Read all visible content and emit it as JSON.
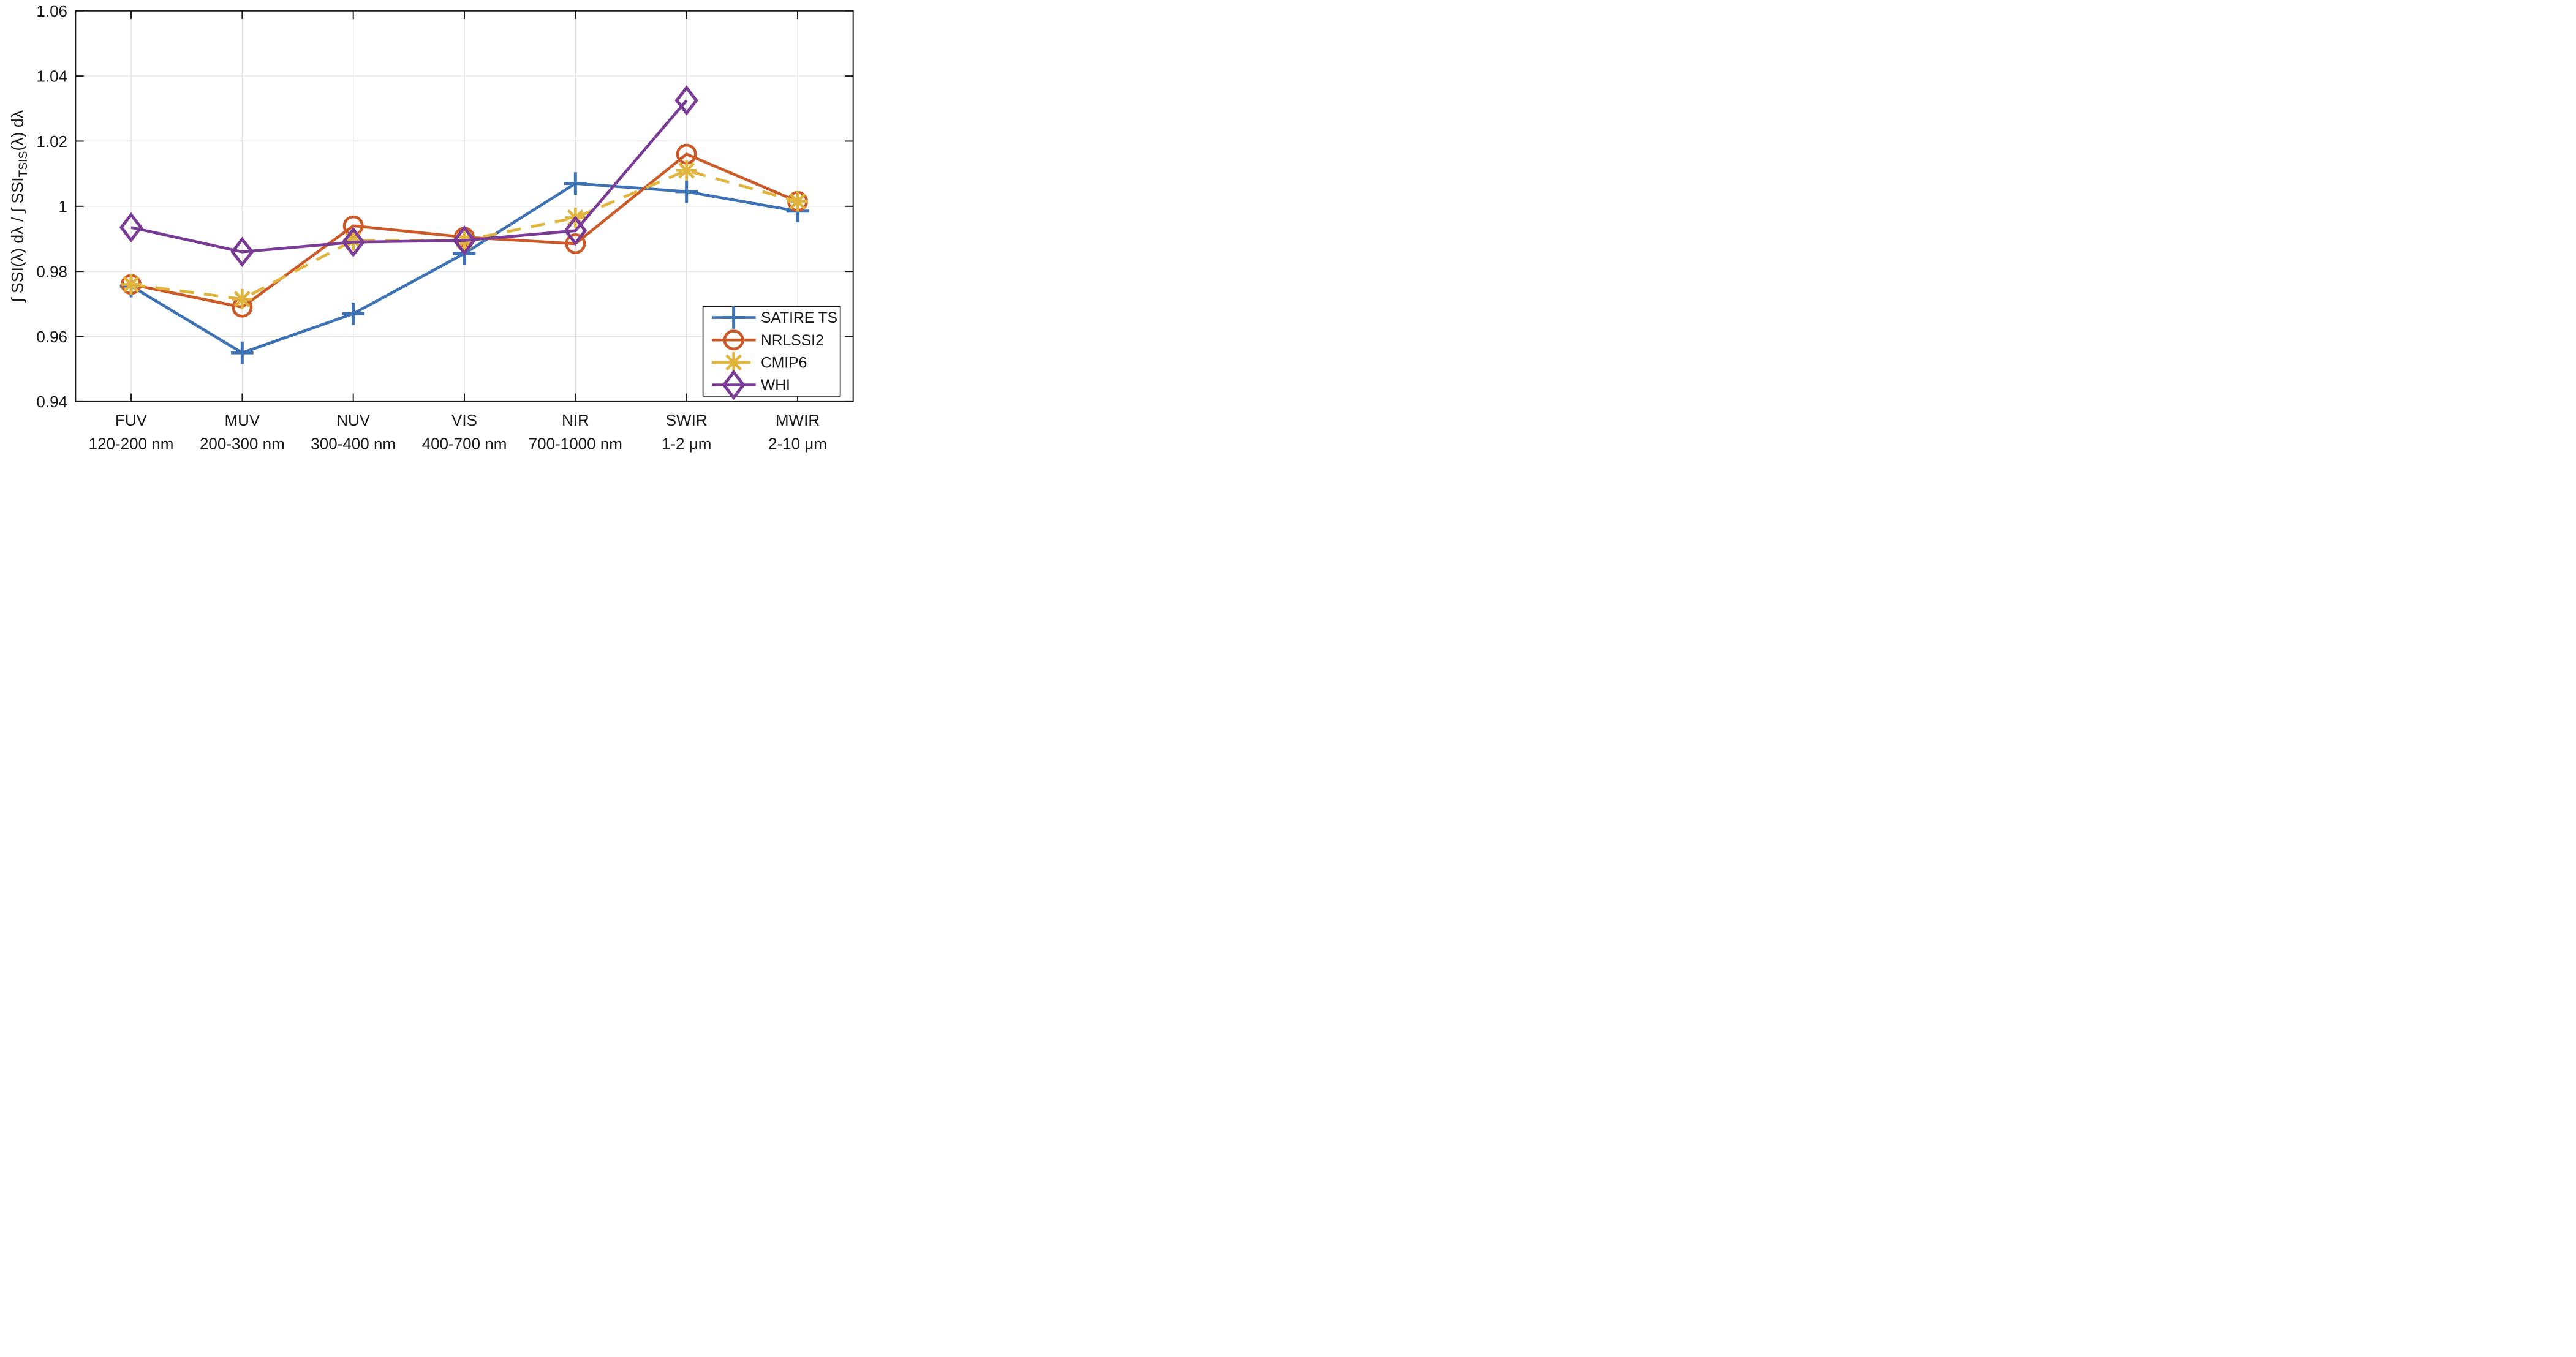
{
  "figure": {
    "background": "#ffffff",
    "axis_color": "#1a1a1a",
    "grid_color": "#e3e3e3",
    "legend_border_color": "#1a1a1a",
    "legend_background": "#ffffff"
  },
  "chart_data": {
    "type": "line",
    "title": "",
    "xlabel": "",
    "ylabel": "∫ SSI(λ) dλ  /  ∫ SSI_TSIS(λ) dλ",
    "ylabel_parts": {
      "main": "∫ SSI(λ) dλ  /  ∫ SSI",
      "sub": "TSIS",
      "tail": "(λ) dλ"
    },
    "grid": true,
    "legend_position": "lower right",
    "ylim": [
      0.94,
      1.06
    ],
    "yticks": [
      0.94,
      0.96,
      0.98,
      1.0,
      1.02,
      1.04,
      1.06
    ],
    "ytick_labels": [
      "0.94",
      "0.96",
      "0.98",
      "1",
      "1.02",
      "1.04",
      "1.06"
    ],
    "categories": [
      {
        "name": "FUV",
        "range": "120-200 nm"
      },
      {
        "name": "MUV",
        "range": "200-300 nm"
      },
      {
        "name": "NUV",
        "range": "300-400 nm"
      },
      {
        "name": "VIS",
        "range": "400-700 nm"
      },
      {
        "name": "NIR",
        "range": "700-1000 nm"
      },
      {
        "name": "SWIR",
        "range": "1-2 μm"
      },
      {
        "name": "MWIR",
        "range": "2-10 μm"
      }
    ],
    "series": [
      {
        "name": "SATIRE TS",
        "color": "#3d72b4",
        "marker": "plus",
        "line_style": "solid",
        "values": [
          0.9755,
          0.955,
          0.967,
          0.9855,
          1.007,
          1.0045,
          0.9985
        ]
      },
      {
        "name": "NRLSSI2",
        "color": "#cb5a28",
        "marker": "circle",
        "line_style": "solid",
        "values": [
          0.976,
          0.969,
          0.994,
          0.9905,
          0.9885,
          1.016,
          1.0015
        ]
      },
      {
        "name": "CMIP6",
        "color": "#e0b43d",
        "marker": "asterisk",
        "line_style": "dashed",
        "values": [
          0.976,
          0.9715,
          0.9895,
          0.9895,
          0.9965,
          1.011,
          1.0015
        ]
      },
      {
        "name": "WHI",
        "color": "#7a3b96",
        "marker": "diamond",
        "line_style": "solid",
        "values": [
          0.9935,
          0.986,
          0.989,
          0.9895,
          0.9925,
          1.0325,
          null
        ]
      }
    ]
  }
}
